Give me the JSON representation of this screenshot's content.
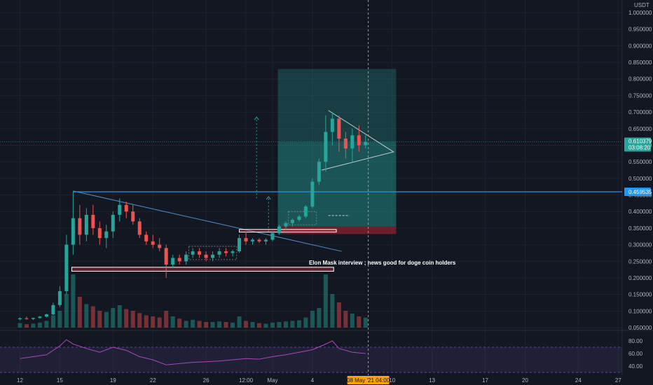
{
  "chart_data": {
    "type": "candlestick",
    "currency": "USDT",
    "price_axis": {
      "ticks": [
        "1.000000",
        "0.950000",
        "0.900000",
        "0.850000",
        "0.800000",
        "0.750000",
        "0.700000",
        "0.650000",
        "0.600000",
        "0.550000",
        "0.500000",
        "0.450000",
        "0.400000",
        "0.350000",
        "0.300000",
        "0.250000",
        "0.200000",
        "0.150000",
        "0.100000",
        "0.050000"
      ],
      "range": [
        0.05,
        1.0
      ]
    },
    "rsi_axis": {
      "ticks": [
        "80.00",
        "60.00",
        "40.00"
      ],
      "range": [
        30,
        90
      ],
      "bands": [
        70,
        30
      ]
    },
    "time_axis": {
      "labels": [
        {
          "text": "12",
          "day": 0
        },
        {
          "text": "15",
          "day": 3
        },
        {
          "text": "19",
          "day": 7
        },
        {
          "text": "22",
          "day": 10
        },
        {
          "text": "26",
          "day": 14
        },
        {
          "text": "12:00",
          "day": 17
        },
        {
          "text": "May",
          "day": 19
        },
        {
          "text": "4",
          "day": 22
        },
        {
          "text": "10",
          "day": 28
        },
        {
          "text": "13",
          "day": 31
        },
        {
          "text": "17",
          "day": 35
        },
        {
          "text": "20",
          "day": 38
        },
        {
          "text": "24",
          "day": 42
        },
        {
          "text": "27",
          "day": 45
        }
      ],
      "range_days": [
        -1.5,
        45.3
      ],
      "cursor_label": "08 May '21  04:00",
      "cursor_day": 26.2
    },
    "current_price": {
      "value": 0.610379,
      "label": "0.610379",
      "countdown": "03:08:20"
    },
    "horizontal_level": {
      "value": 0.459535,
      "label": "0.459535"
    },
    "long_position": {
      "day_start": 19.4,
      "day_end": 28.3,
      "entry": 0.355,
      "target": 0.83,
      "stop": 0.332
    },
    "annotation": "Elon Mask interview ; news good for doge coin holders",
    "candles": [
      [
        0.0,
        0.075,
        0.081,
        0.072,
        0.078
      ],
      [
        0.5,
        0.078,
        0.083,
        0.074,
        0.076
      ],
      [
        1.0,
        0.076,
        0.08,
        0.073,
        0.079
      ],
      [
        1.5,
        0.079,
        0.085,
        0.077,
        0.083
      ],
      [
        2.0,
        0.083,
        0.092,
        0.081,
        0.09
      ],
      [
        2.5,
        0.09,
        0.125,
        0.088,
        0.118
      ],
      [
        3.0,
        0.118,
        0.175,
        0.112,
        0.16
      ],
      [
        3.5,
        0.16,
        0.33,
        0.15,
        0.3
      ],
      [
        4.0,
        0.3,
        0.46,
        0.27,
        0.38
      ],
      [
        4.5,
        0.38,
        0.42,
        0.3,
        0.33
      ],
      [
        5.0,
        0.33,
        0.41,
        0.31,
        0.39
      ],
      [
        5.5,
        0.39,
        0.42,
        0.33,
        0.35
      ],
      [
        6.0,
        0.35,
        0.37,
        0.3,
        0.32
      ],
      [
        6.5,
        0.32,
        0.36,
        0.29,
        0.34
      ],
      [
        7.0,
        0.34,
        0.4,
        0.32,
        0.39
      ],
      [
        7.5,
        0.39,
        0.44,
        0.37,
        0.42
      ],
      [
        8.0,
        0.42,
        0.43,
        0.38,
        0.4
      ],
      [
        8.5,
        0.4,
        0.42,
        0.36,
        0.37
      ],
      [
        9.0,
        0.37,
        0.38,
        0.32,
        0.33
      ],
      [
        9.5,
        0.33,
        0.34,
        0.3,
        0.31
      ],
      [
        10.0,
        0.31,
        0.33,
        0.29,
        0.3
      ],
      [
        10.5,
        0.3,
        0.32,
        0.28,
        0.29
      ],
      [
        11.0,
        0.29,
        0.3,
        0.2,
        0.24
      ],
      [
        11.5,
        0.24,
        0.27,
        0.23,
        0.26
      ],
      [
        12.0,
        0.26,
        0.27,
        0.24,
        0.25
      ],
      [
        12.5,
        0.25,
        0.28,
        0.24,
        0.27
      ],
      [
        13.0,
        0.27,
        0.29,
        0.26,
        0.28
      ],
      [
        13.5,
        0.28,
        0.29,
        0.26,
        0.27
      ],
      [
        14.0,
        0.27,
        0.28,
        0.25,
        0.26
      ],
      [
        14.5,
        0.26,
        0.28,
        0.25,
        0.27
      ],
      [
        15.0,
        0.27,
        0.29,
        0.26,
        0.28
      ],
      [
        15.5,
        0.28,
        0.29,
        0.265,
        0.275
      ],
      [
        16.0,
        0.275,
        0.285,
        0.265,
        0.28
      ],
      [
        16.5,
        0.28,
        0.33,
        0.275,
        0.32
      ],
      [
        17.0,
        0.32,
        0.34,
        0.3,
        0.31
      ],
      [
        17.5,
        0.31,
        0.32,
        0.3,
        0.315
      ],
      [
        18.0,
        0.315,
        0.32,
        0.305,
        0.31
      ],
      [
        18.5,
        0.31,
        0.32,
        0.3,
        0.315
      ],
      [
        19.0,
        0.315,
        0.34,
        0.31,
        0.335
      ],
      [
        19.5,
        0.335,
        0.36,
        0.33,
        0.355
      ],
      [
        20.0,
        0.355,
        0.37,
        0.345,
        0.365
      ],
      [
        20.5,
        0.365,
        0.38,
        0.355,
        0.375
      ],
      [
        21.0,
        0.375,
        0.39,
        0.37,
        0.385
      ],
      [
        21.5,
        0.385,
        0.42,
        0.38,
        0.415
      ],
      [
        22.0,
        0.415,
        0.5,
        0.41,
        0.49
      ],
      [
        22.5,
        0.49,
        0.56,
        0.48,
        0.55
      ],
      [
        23.0,
        0.55,
        0.69,
        0.52,
        0.64
      ],
      [
        23.5,
        0.64,
        0.7,
        0.6,
        0.68
      ],
      [
        24.0,
        0.68,
        0.69,
        0.58,
        0.62
      ],
      [
        24.5,
        0.62,
        0.64,
        0.56,
        0.59
      ],
      [
        25.0,
        0.59,
        0.65,
        0.55,
        0.63
      ],
      [
        25.5,
        0.63,
        0.66,
        0.58,
        0.6
      ],
      [
        26.0,
        0.6,
        0.63,
        0.59,
        0.61
      ]
    ],
    "volume": [
      0.08,
      0.06,
      0.07,
      0.09,
      0.12,
      0.22,
      0.3,
      0.6,
      0.95,
      0.55,
      0.42,
      0.38,
      0.3,
      0.28,
      0.35,
      0.4,
      0.33,
      0.3,
      0.26,
      0.22,
      0.2,
      0.18,
      0.3,
      0.2,
      0.16,
      0.12,
      0.14,
      0.12,
      0.1,
      0.1,
      0.11,
      0.1,
      0.09,
      0.2,
      0.12,
      0.1,
      0.08,
      0.07,
      0.09,
      0.1,
      0.11,
      0.12,
      0.13,
      0.18,
      0.3,
      0.35,
      0.95,
      0.6,
      0.45,
      0.3,
      0.25,
      0.2,
      0.18
    ],
    "rsi": [
      [
        0,
        52
      ],
      [
        1,
        55
      ],
      [
        2,
        58
      ],
      [
        3,
        72
      ],
      [
        3.5,
        82
      ],
      [
        4,
        75
      ],
      [
        5,
        68
      ],
      [
        6,
        62
      ],
      [
        7,
        70
      ],
      [
        8,
        65
      ],
      [
        9,
        55
      ],
      [
        10,
        50
      ],
      [
        11,
        42
      ],
      [
        12,
        44
      ],
      [
        13,
        46
      ],
      [
        14,
        47
      ],
      [
        15,
        48
      ],
      [
        16,
        50
      ],
      [
        17,
        52
      ],
      [
        18,
        51
      ],
      [
        19,
        55
      ],
      [
        20,
        58
      ],
      [
        21,
        62
      ],
      [
        22,
        66
      ],
      [
        23,
        75
      ],
      [
        23.5,
        80
      ],
      [
        24,
        68
      ],
      [
        25,
        62
      ],
      [
        26,
        60
      ]
    ]
  }
}
